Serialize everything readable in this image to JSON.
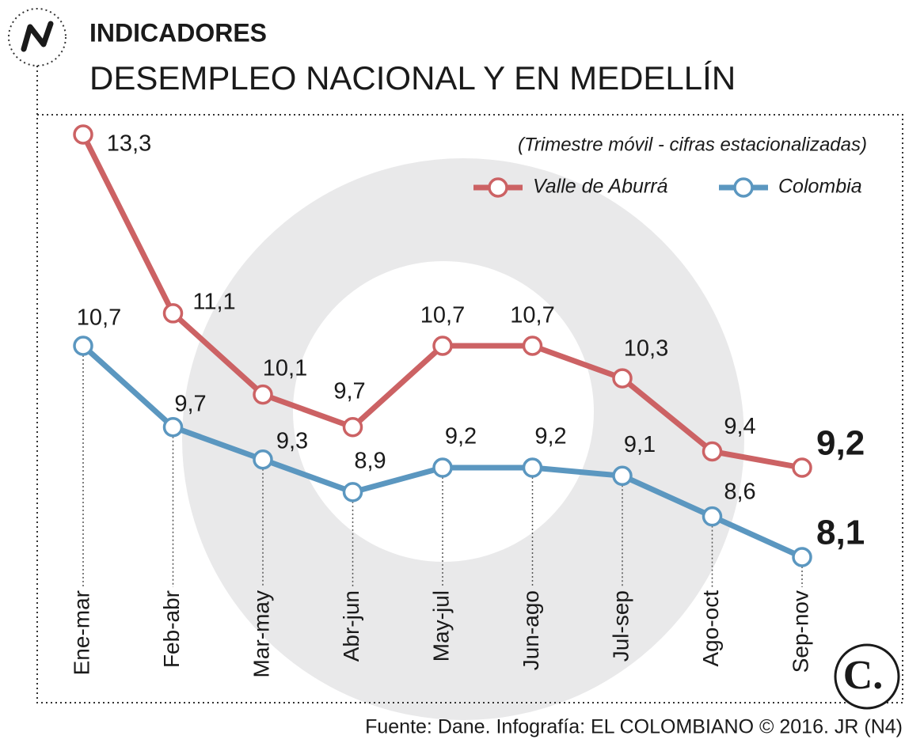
{
  "header": "INDICADORES",
  "chart_data": {
    "type": "line",
    "title": "DESEMPLEO NACIONAL Y EN MEDELLÍN",
    "subtitle": "(Trimestre móvil - cifras estacionalizadas)",
    "categories": [
      "Ene-mar",
      "Feb-abr",
      "Mar-may",
      "Abr-jun",
      "May-jul",
      "Jun-ago",
      "Jul-sep",
      "Ago-oct",
      "Sep-nov"
    ],
    "series": [
      {
        "name": "Valle de Aburrá",
        "color": "#cc6264",
        "values": [
          13.3,
          11.1,
          10.1,
          9.7,
          10.7,
          10.7,
          10.3,
          9.4,
          9.2
        ],
        "value_labels": [
          "13,3",
          "11,1",
          "10,1",
          "9,7",
          "10,7",
          "10,7",
          "10,3",
          "9,4",
          "9,2"
        ]
      },
      {
        "name": "Colombia",
        "color": "#5b97c0",
        "values": [
          10.7,
          9.7,
          9.3,
          8.9,
          9.2,
          9.2,
          9.1,
          8.6,
          8.1
        ],
        "value_labels": [
          "10,7",
          "9,7",
          "9,3",
          "8,9",
          "9,2",
          "9,2",
          "9,1",
          "8,6",
          "8,1"
        ]
      }
    ],
    "legend": "top-right"
  },
  "source": "Fuente: Dane. Infografía: EL COLOMBIANO © 2016. JR (N4)"
}
